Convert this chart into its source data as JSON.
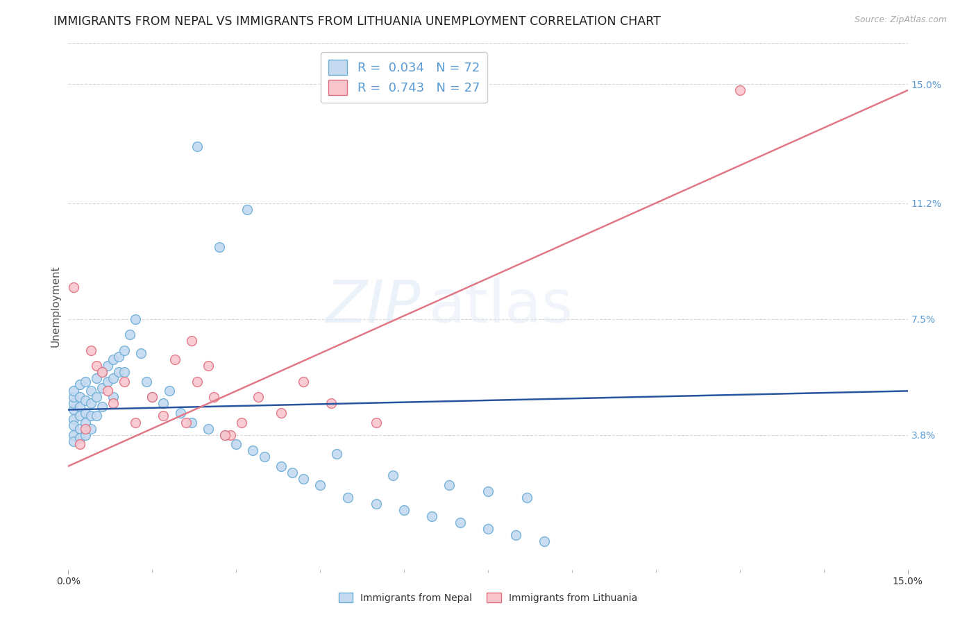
{
  "title": "IMMIGRANTS FROM NEPAL VS IMMIGRANTS FROM LITHUANIA UNEMPLOYMENT CORRELATION CHART",
  "source": "Source: ZipAtlas.com",
  "ylabel": "Unemployment",
  "ytick_labels": [
    "15.0%",
    "11.2%",
    "7.5%",
    "3.8%"
  ],
  "ytick_values": [
    0.15,
    0.112,
    0.075,
    0.038
  ],
  "xmin": 0.0,
  "xmax": 0.15,
  "ymin": -0.005,
  "ymax": 0.163,
  "nepal_R": "0.034",
  "nepal_N": "72",
  "lithuania_R": "0.743",
  "lithuania_N": "27",
  "nepal_color": "#c5d9f0",
  "nepal_edge_color": "#6baed6",
  "lithuania_color": "#f9c6ce",
  "lithuania_edge_color": "#e07080",
  "nepal_line_color": "#2855a0",
  "lithuania_line_color": "#e07888",
  "watermark_zip": "ZIP",
  "watermark_atlas": "atlas",
  "background_color": "#ffffff",
  "grid_color": "#d8d8d8",
  "title_fontsize": 12.5,
  "axis_label_fontsize": 11,
  "legend_fontsize": 13,
  "nepal_line_y0": 0.046,
  "nepal_line_y1": 0.052,
  "lithuania_line_y0": 0.028,
  "lithuania_line_y1": 0.148,
  "nepal_scatter_x": [
    0.001,
    0.001,
    0.001,
    0.001,
    0.001,
    0.001,
    0.001,
    0.001,
    0.002,
    0.002,
    0.002,
    0.002,
    0.002,
    0.002,
    0.003,
    0.003,
    0.003,
    0.003,
    0.003,
    0.004,
    0.004,
    0.004,
    0.004,
    0.005,
    0.005,
    0.005,
    0.006,
    0.006,
    0.006,
    0.007,
    0.007,
    0.008,
    0.008,
    0.008,
    0.009,
    0.009,
    0.01,
    0.01,
    0.011,
    0.012,
    0.013,
    0.014,
    0.015,
    0.017,
    0.018,
    0.02,
    0.022,
    0.025,
    0.028,
    0.03,
    0.033,
    0.035,
    0.038,
    0.04,
    0.042,
    0.045,
    0.05,
    0.055,
    0.06,
    0.065,
    0.07,
    0.075,
    0.08,
    0.085,
    0.023,
    0.027,
    0.032,
    0.048,
    0.058,
    0.068,
    0.075,
    0.082
  ],
  "nepal_scatter_y": [
    0.046,
    0.048,
    0.05,
    0.052,
    0.043,
    0.041,
    0.038,
    0.036,
    0.05,
    0.047,
    0.044,
    0.054,
    0.04,
    0.037,
    0.055,
    0.049,
    0.045,
    0.042,
    0.038,
    0.052,
    0.048,
    0.044,
    0.04,
    0.056,
    0.05,
    0.044,
    0.058,
    0.053,
    0.047,
    0.06,
    0.055,
    0.062,
    0.056,
    0.05,
    0.063,
    0.058,
    0.065,
    0.058,
    0.07,
    0.075,
    0.064,
    0.055,
    0.05,
    0.048,
    0.052,
    0.045,
    0.042,
    0.04,
    0.038,
    0.035,
    0.033,
    0.031,
    0.028,
    0.026,
    0.024,
    0.022,
    0.018,
    0.016,
    0.014,
    0.012,
    0.01,
    0.008,
    0.006,
    0.004,
    0.13,
    0.098,
    0.11,
    0.032,
    0.025,
    0.022,
    0.02,
    0.018
  ],
  "lithuania_scatter_x": [
    0.001,
    0.002,
    0.003,
    0.004,
    0.005,
    0.006,
    0.007,
    0.008,
    0.01,
    0.012,
    0.015,
    0.017,
    0.019,
    0.021,
    0.023,
    0.026,
    0.029,
    0.022,
    0.025,
    0.028,
    0.031,
    0.034,
    0.038,
    0.042,
    0.047,
    0.055,
    0.12
  ],
  "lithuania_scatter_y": [
    0.085,
    0.035,
    0.04,
    0.065,
    0.06,
    0.058,
    0.052,
    0.048,
    0.055,
    0.042,
    0.05,
    0.044,
    0.062,
    0.042,
    0.055,
    0.05,
    0.038,
    0.068,
    0.06,
    0.038,
    0.042,
    0.05,
    0.045,
    0.055,
    0.048,
    0.042,
    0.148
  ]
}
